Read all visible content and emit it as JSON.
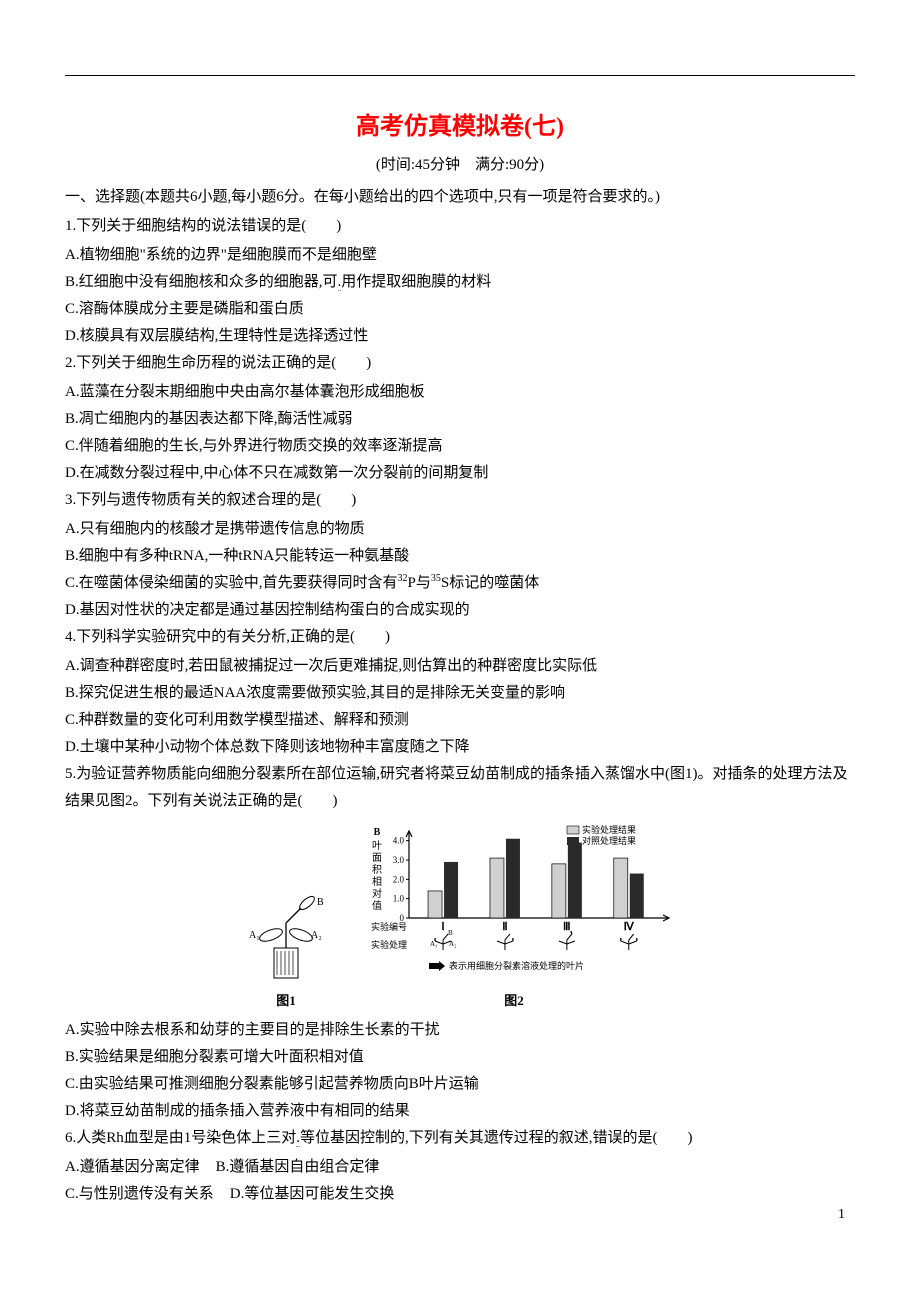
{
  "title": "高考仿真模拟卷(七)",
  "time_info": "(时间:45分钟　满分:90分)",
  "section1_header": "一、选择题(本题共6小题,每小题6分。在每小题给出的四个选项中,只有一项是符合要求的。)",
  "q1": {
    "stem": "1.下列关于细胞结构的说法错误的是(　　)",
    "a": "A.植物细胞\"系统的边界\"是细胞膜而不是细胞壁",
    "b_pre": "B.红细胞中没有细胞核和众多的细胞器,可",
    "b_dot": ".",
    "b_post": "用作提取细胞膜的材料",
    "c": "C.溶酶体膜成分主要是磷脂和蛋白质",
    "d": "D.核膜具有双层膜结构,生理特性是选择透过性"
  },
  "q2": {
    "stem": "2.下列关于细胞生命历程的说法正确的是(　　)",
    "a": "A.蓝藻在分裂末期细胞中央由高尔基体囊泡形成细胞板",
    "b": "B.凋亡细胞内的基因表达都下降,酶活性减弱",
    "c": "C.伴随着细胞的生长,与外界进行物质交换的效率逐渐提高",
    "d": "D.在减数分裂过程中,中心体不只在减数第一次分裂前的间期复制"
  },
  "q3": {
    "stem": "3.下列与遗传物质有关的叙述合理的是(　　)",
    "a": "A.只有细胞内的核酸才是携带遗传信息的物质",
    "b": "B.细胞中有多种tRNA,一种tRNA只能转运一种氨基酸",
    "c_pre": "C.在噬菌体侵染细菌的实验中,首先要获得同时含有",
    "c_p32": "32",
    "c_mid": "P与",
    "c_s35": "35",
    "c_post": "S标记的噬菌体",
    "d": "D.基因对性状的决定都是通过基因控制结构蛋白的合成实现的"
  },
  "q4": {
    "stem": "4.下列科学实验研究中的有关分析,正确的是(　　)",
    "a": "A.调查种群密度时,若田鼠被捕捉过一次后更难捕捉,则估算出的种群密度比实际低",
    "b": "B.探究促进生根的最适NAA浓度需要做预实验,其目的是排除无关变量的影响",
    "c": "C.种群数量的变化可利用数学模型描述、解释和预测",
    "d": "D.土壤中某种小动物个体总数下降则该地物种丰富度随之下降"
  },
  "q5": {
    "stem1": "5.为验证营养物质能向细胞分裂素所在部位运输,研究者将菜豆幼苗制成的插条插入蒸馏水中(图1)。对插条的处理方法及结果见图2。下列有关说法正确的是(　　)",
    "fig1_label": "图1",
    "fig2_label": "图2",
    "a": "A.实验中除去根系和幼芽的主要目的是排除生长素的干扰",
    "b": "B.实验结果是细胞分裂素可增大叶面积相对值",
    "c": "C.由实验结果可推测细胞分裂素能够引起营养物质向B叶片运输",
    "d": "D.将菜豆幼苗制成的插条插入营养液中有相同的结果"
  },
  "q6": {
    "stem_pre": "6.人类Rh血型是由1号染色体上三对",
    "stem_dot": ".",
    "stem_post": "等位基因控制的,下列有关其遗传过程的叙述,错误的是(　　)",
    "a": "A.遵循基因分离定律",
    "b": "B.遵循基因自由组合定律",
    "c": "C.与性别遗传没有关系",
    "d": "D.等位基因可能发生交换"
  },
  "chart": {
    "ylabel_top": "B",
    "ylabel_lines": [
      "叶",
      "面",
      "积",
      "相",
      "对",
      "值"
    ],
    "yticks": [
      "4.0",
      "3.0",
      "2.0",
      "1.0",
      "0"
    ],
    "yvals": [
      4.0,
      3.0,
      2.0,
      1.0,
      0
    ],
    "ylim": [
      0,
      4.5
    ],
    "legend_exp": "实验处理结果",
    "legend_ctrl": "对照处理结果",
    "exp_color": "#d0d0d0",
    "ctrl_color": "#2a2a2a",
    "groups": [
      "Ⅰ",
      "Ⅱ",
      "Ⅲ",
      "Ⅳ"
    ],
    "exp_values": [
      1.4,
      3.1,
      2.8,
      3.1
    ],
    "ctrl_values": [
      2.9,
      4.1,
      3.9,
      2.3
    ],
    "xlabel1": "实验编号",
    "xlabel2": "实验处理",
    "arrow_note": "表示用细胞分裂素溶液处理的叶片",
    "fig1_a1": "A₁",
    "fig1_a2": "A₂",
    "fig1_b": "B"
  },
  "page_number": "1"
}
